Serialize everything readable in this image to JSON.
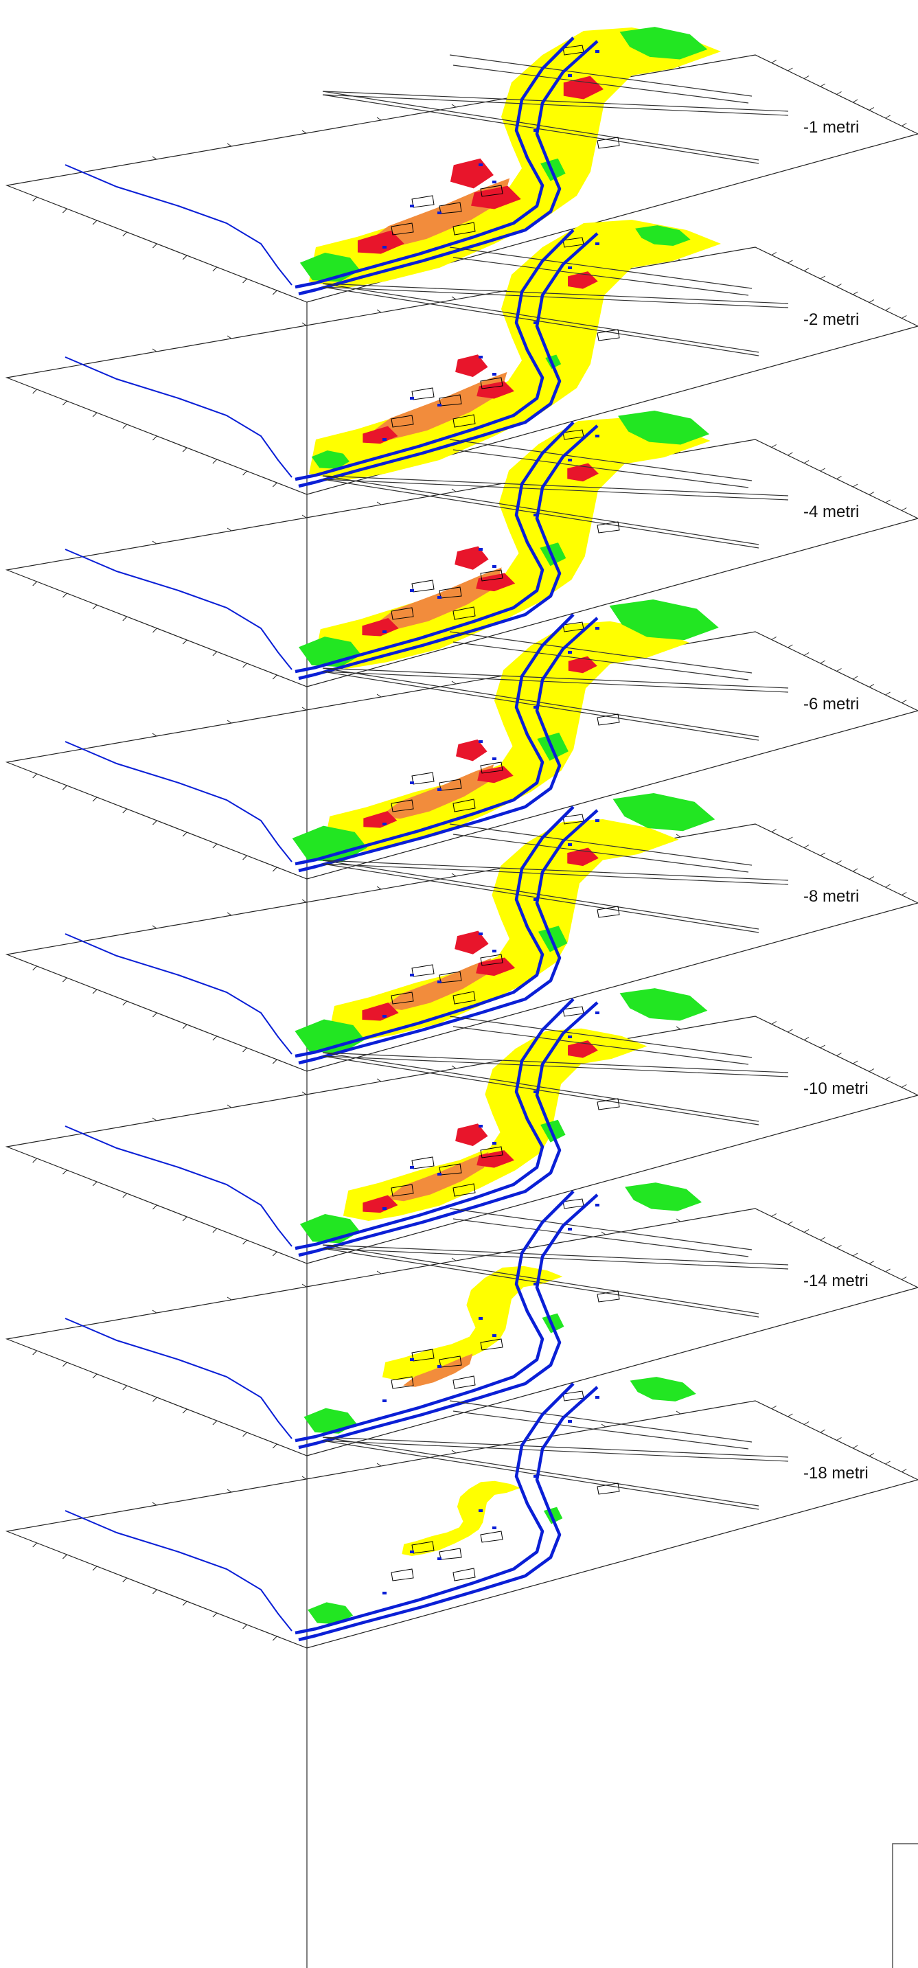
{
  "layers": [
    {
      "label": "-1 metri",
      "red": 0.95,
      "orange": 0.9,
      "yellow": 1.0,
      "green": 0.55
    },
    {
      "label": "-2 metri",
      "red": 0.55,
      "orange": 0.85,
      "yellow": 1.0,
      "green": 0.1
    },
    {
      "label": "-4 metri",
      "red": 0.6,
      "orange": 0.75,
      "yellow": 0.95,
      "green": 0.6
    },
    {
      "label": "-6 metri",
      "red": 0.5,
      "orange": 0.6,
      "yellow": 0.85,
      "green": 0.85
    },
    {
      "label": "-8 metri",
      "red": 0.6,
      "orange": 0.55,
      "yellow": 0.8,
      "green": 0.75
    },
    {
      "label": "-10 metri",
      "red": 0.55,
      "orange": 0.5,
      "yellow": 0.65,
      "green": 0.55
    },
    {
      "label": "-14 metri",
      "red": 0.0,
      "orange": 0.2,
      "yellow": 0.25,
      "green": 0.4
    },
    {
      "label": "-18 metri",
      "red": 0.0,
      "orange": 0.0,
      "yellow": 0.05,
      "green": 0.25
    }
  ],
  "colors": {
    "river": "#0a1fd6",
    "red": "#e8152b",
    "orange": "#f28c3c",
    "yellow": "#ffff00",
    "green": "#22e622",
    "frame": "#222222",
    "roads": "#333333"
  }
}
